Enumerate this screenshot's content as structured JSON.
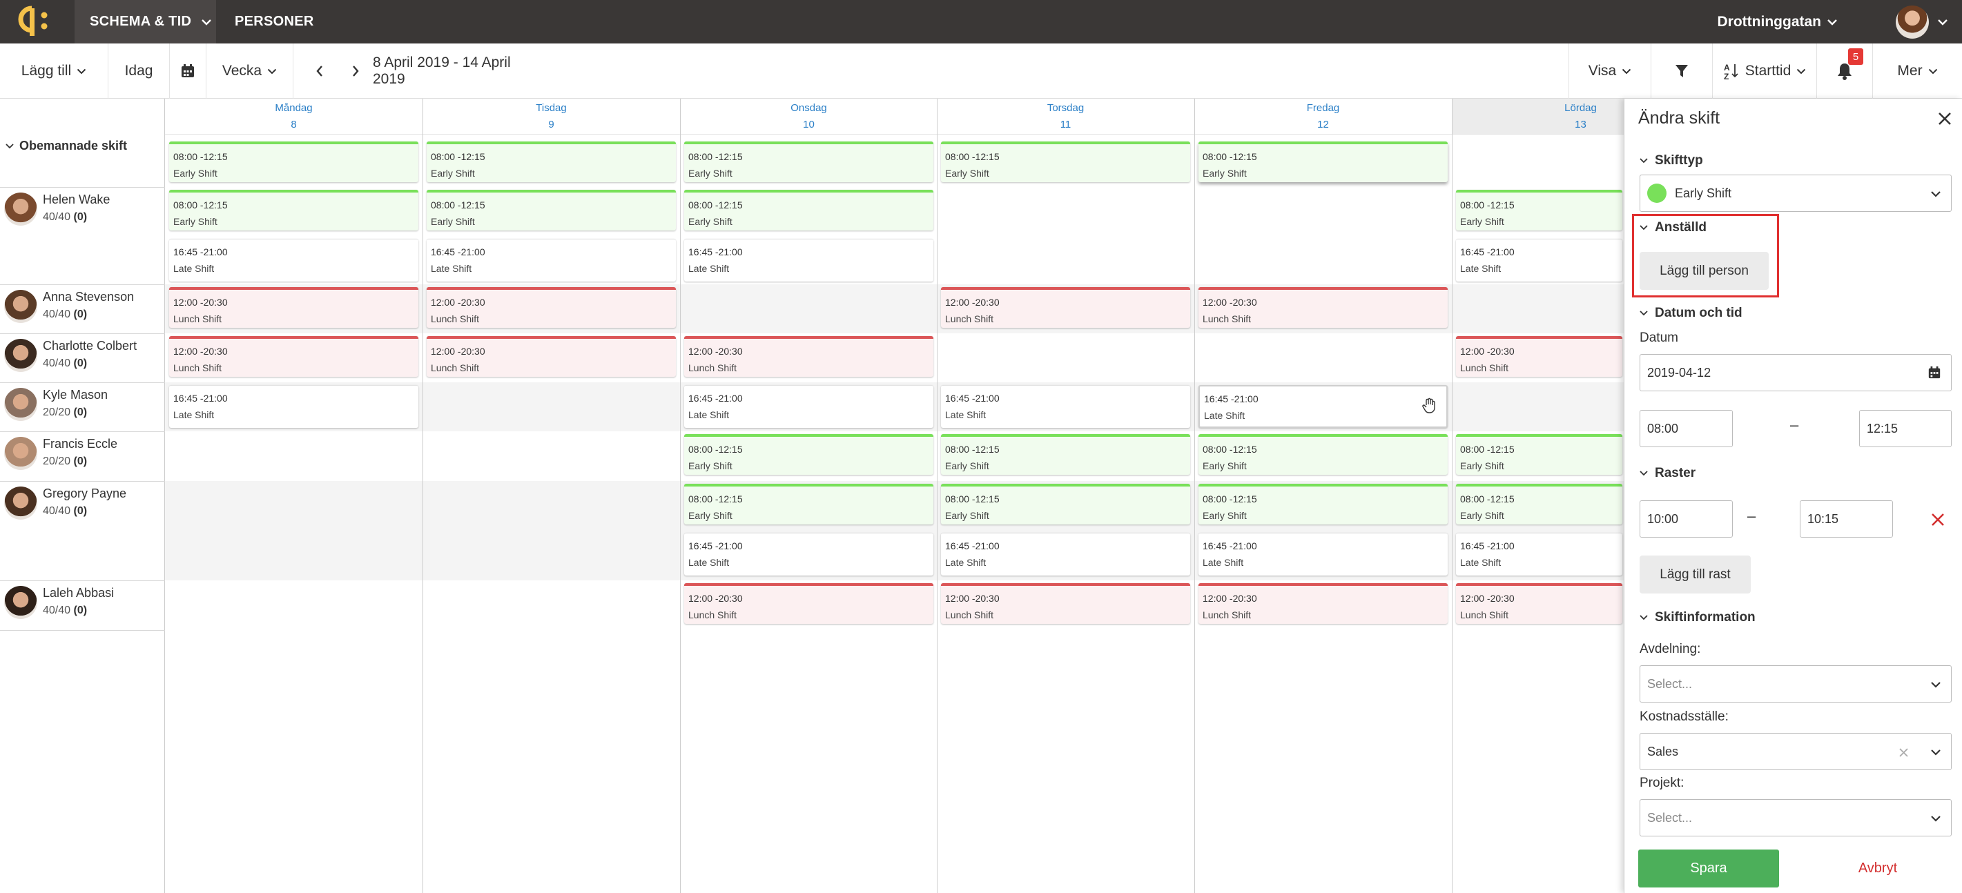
{
  "topbar": {
    "nav_schema": "SCHEMA & TID",
    "nav_personer": "PERSONER",
    "location": "Drottninggatan"
  },
  "toolbar": {
    "add": "Lägg till",
    "today": "Idag",
    "period": "Vecka",
    "date_range": "8 April 2019 - 14 April 2019",
    "view": "Visa",
    "sort": "Starttid",
    "notifications": "5",
    "more": "Mer"
  },
  "days": [
    {
      "name": "Måndag",
      "num": "8"
    },
    {
      "name": "Tisdag",
      "num": "9"
    },
    {
      "name": "Onsdag",
      "num": "10"
    },
    {
      "name": "Torsdag",
      "num": "11"
    },
    {
      "name": "Fredag",
      "num": "12"
    },
    {
      "name": "Lördag",
      "num": "13"
    }
  ],
  "unassigned_label": "Obemannade skift",
  "employees": [
    {
      "name": "Helen Wake",
      "hours": "40/40",
      "extra": "(0)"
    },
    {
      "name": "Anna Stevenson",
      "hours": "40/40",
      "extra": "(0)"
    },
    {
      "name": "Charlotte Colbert",
      "hours": "40/40",
      "extra": "(0)"
    },
    {
      "name": "Kyle Mason",
      "hours": "20/20",
      "extra": "(0)"
    },
    {
      "name": "Francis Eccle",
      "hours": "20/20",
      "extra": "(0)"
    },
    {
      "name": "Gregory Payne",
      "hours": "40/40",
      "extra": "(0)"
    },
    {
      "name": "Laleh Abbasi",
      "hours": "40/40",
      "extra": "(0)"
    }
  ],
  "shift_types": {
    "early": {
      "time": "08:00 -12:15",
      "name": "Early Shift",
      "color": "#79e05a"
    },
    "late": {
      "time": "16:45 -21:00",
      "name": "Late Shift",
      "color": "#e2e2e2"
    },
    "lunch": {
      "time": "12:00 -20:30",
      "name": "Lunch Shift",
      "color": "#db5557"
    }
  },
  "panel": {
    "title": "Ändra skift",
    "sec_shifttype": "Skifttyp",
    "shifttype_value": "Early Shift",
    "sec_employee": "Anställd",
    "add_person": "Lägg till person",
    "sec_datetime": "Datum och tid",
    "date_label": "Datum",
    "date_value": "2019-04-12",
    "start_time": "08:00",
    "end_time": "12:15",
    "sec_breaks": "Raster",
    "break_start": "10:00",
    "break_end": "10:15",
    "add_break": "Lägg till rast",
    "sec_info": "Skiftinformation",
    "department_label": "Avdelning:",
    "department_placeholder": "Select...",
    "costcenter_label": "Kostnadsställe:",
    "costcenter_value": "Sales",
    "project_label": "Projekt:",
    "project_placeholder": "Select...",
    "save": "Spara",
    "cancel": "Avbryt"
  }
}
